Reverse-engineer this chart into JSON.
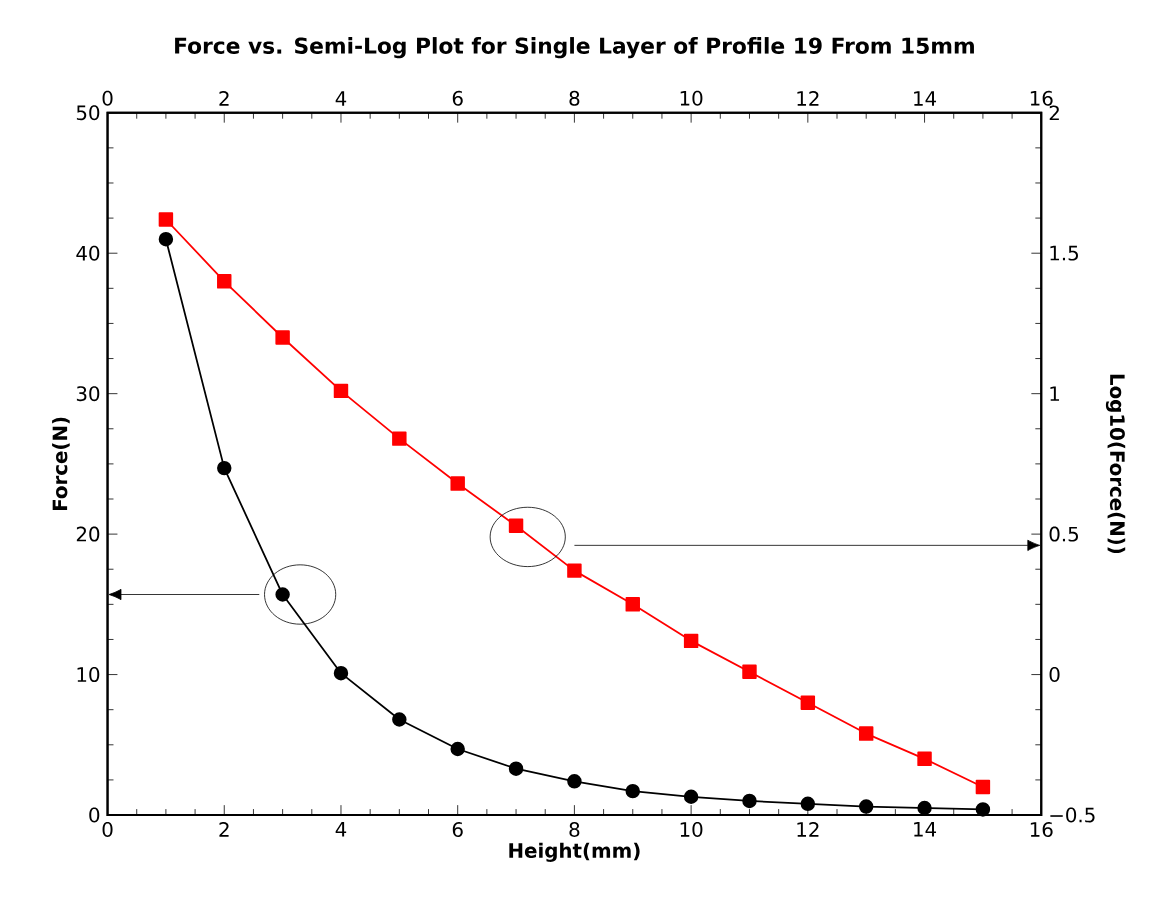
{
  "chart_data": {
    "type": "line",
    "title": "Force vs. Semi-Log Plot for Single Layer of Profile 19 From 15mm",
    "xlabel": "Height(mm)",
    "ylabel": "Force(N)",
    "y2label": "Log10(Force(N))",
    "x": [
      1,
      2,
      3,
      4,
      5,
      6,
      7,
      8,
      9,
      10,
      11,
      12,
      13,
      14,
      15
    ],
    "xlim": [
      0,
      16
    ],
    "xticks": [
      0,
      2,
      4,
      6,
      8,
      10,
      12,
      14,
      16
    ],
    "x2lim": [
      0,
      16
    ],
    "x2ticks": [
      0,
      2,
      4,
      6,
      8,
      10,
      12,
      14,
      16
    ],
    "ylim": [
      0,
      50
    ],
    "yticks": [
      0,
      10,
      20,
      30,
      40,
      50
    ],
    "y2lim": [
      -0.5,
      2
    ],
    "y2ticks": [
      {
        "value": -0.5,
        "label": "−0.5"
      },
      0,
      0.5,
      1,
      1.5,
      2
    ],
    "series": [
      {
        "color": "#000000",
        "marker": "circle",
        "values": [
          41,
          24.7,
          15.7,
          10.1,
          6.8,
          4.7,
          3.3,
          2.4,
          1.7,
          1.3,
          1.0,
          0.8,
          0.6,
          0.5,
          0.4
        ]
      },
      {
        "color": "#ff0000",
        "marker": "square",
        "axis": "y2",
        "values": [
          1.62,
          1.4,
          1.2,
          1.01,
          0.84,
          0.68,
          0.53,
          0.37,
          0.25,
          0.12,
          0.01,
          -0.1,
          -0.21,
          -0.3,
          -0.4
        ]
      }
    ]
  }
}
